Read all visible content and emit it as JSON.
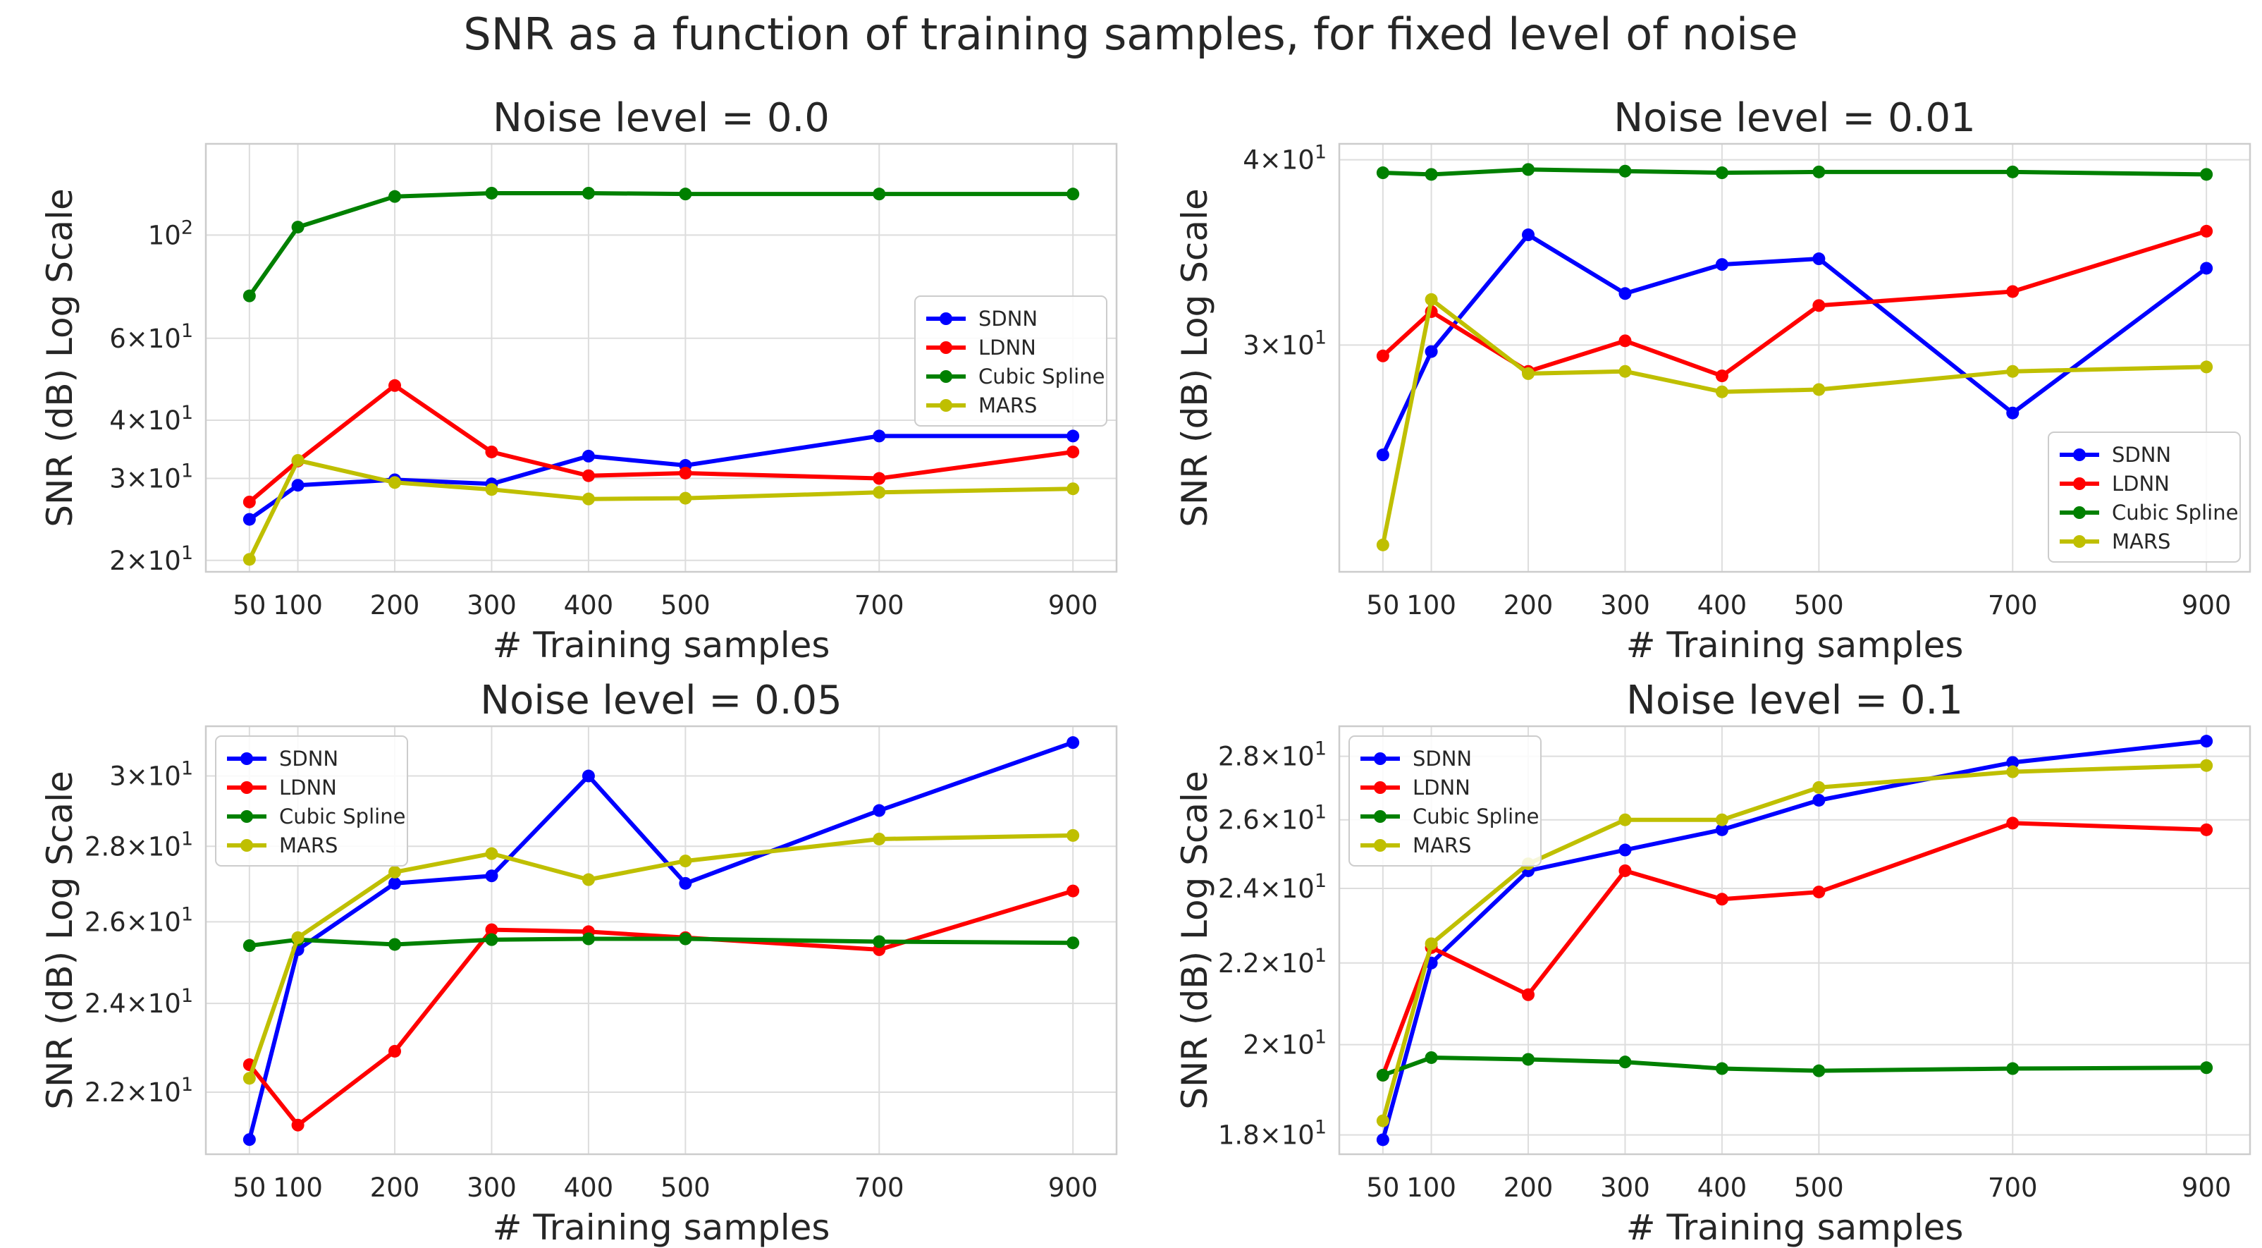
{
  "suptitle": "SNR as a function of training samples, for fixed level of noise",
  "colors": {
    "SDNN": "#0000ff",
    "LDNN": "#ff0000",
    "Cubic Spline": "#008000",
    "MARS": "#bfbf00",
    "grid": "#dddddd",
    "frame": "#cccccc"
  },
  "chart_data": [
    {
      "type": "line",
      "title": "Noise level = 0.0",
      "xlabel": "# Training samples",
      "ylabel": "SNR (dB) Log Scale",
      "yscale": "log",
      "x": [
        50,
        100,
        200,
        300,
        400,
        500,
        700,
        900
      ],
      "xlim": [
        5,
        945
      ],
      "ylim": [
        18.9,
        157
      ],
      "yticks": [
        {
          "value": 20,
          "label": "2×10^1"
        },
        {
          "value": 30,
          "label": "3×10^1"
        },
        {
          "value": 40,
          "label": "4×10^1"
        },
        {
          "value": 60,
          "label": "6×10^1"
        },
        {
          "value": 100,
          "label": "10^2"
        }
      ],
      "legend": "center-right",
      "series": [
        {
          "name": "SDNN",
          "values": [
            24.5,
            29.0,
            29.8,
            29.2,
            33.5,
            32.0,
            37.0,
            37.0
          ]
        },
        {
          "name": "LDNN",
          "values": [
            26.7,
            32.7,
            47.5,
            34.2,
            30.4,
            30.8,
            30.0,
            34.2
          ]
        },
        {
          "name": "Cubic Spline",
          "values": [
            74.0,
            104.0,
            121.0,
            123.0,
            123.0,
            122.5,
            122.5,
            122.5
          ]
        },
        {
          "name": "MARS",
          "values": [
            20.1,
            32.8,
            29.4,
            28.4,
            27.1,
            27.2,
            28.0,
            28.5
          ]
        }
      ]
    },
    {
      "type": "line",
      "title": "Noise level = 0.01",
      "xlabel": "# Training samples",
      "ylabel": "SNR (dB) Log Scale",
      "yscale": "log",
      "x": [
        50,
        100,
        200,
        300,
        400,
        500,
        700,
        900
      ],
      "xlim": [
        5,
        945
      ],
      "ylim": [
        21.1,
        41.0
      ],
      "yticks": [
        {
          "value": 30,
          "label": "3×10^1"
        },
        {
          "value": 40,
          "label": "4×10^1"
        }
      ],
      "legend": "lower-right",
      "series": [
        {
          "name": "SDNN",
          "values": [
            25.3,
            29.7,
            35.6,
            32.5,
            34.0,
            34.3,
            27.0,
            33.8
          ]
        },
        {
          "name": "LDNN",
          "values": [
            29.5,
            31.6,
            28.8,
            30.2,
            28.6,
            31.9,
            32.6,
            35.8
          ]
        },
        {
          "name": "Cubic Spline",
          "values": [
            39.2,
            39.1,
            39.4,
            39.3,
            39.2,
            39.25,
            39.25,
            39.1
          ]
        },
        {
          "name": "MARS",
          "values": [
            22.0,
            32.2,
            28.7,
            28.8,
            27.9,
            28.0,
            28.8,
            29.0
          ]
        }
      ]
    },
    {
      "type": "line",
      "title": "Noise level = 0.05",
      "xlabel": "# Training samples",
      "ylabel": "SNR (dB) Log Scale",
      "yscale": "log",
      "x": [
        50,
        100,
        200,
        300,
        400,
        500,
        700,
        900
      ],
      "xlim": [
        5,
        945
      ],
      "ylim": [
        20.7,
        31.5
      ],
      "yticks": [
        {
          "value": 22,
          "label": "2.2×10^1"
        },
        {
          "value": 24,
          "label": "2.4×10^1"
        },
        {
          "value": 26,
          "label": "2.6×10^1"
        },
        {
          "value": 28,
          "label": "2.8×10^1"
        },
        {
          "value": 30,
          "label": "3×10^1"
        }
      ],
      "legend": "upper-left",
      "series": [
        {
          "name": "SDNN",
          "values": [
            21.0,
            25.3,
            27.0,
            27.2,
            30.0,
            27.0,
            29.0,
            31.0
          ]
        },
        {
          "name": "LDNN",
          "values": [
            22.6,
            21.3,
            22.9,
            25.8,
            25.75,
            25.6,
            25.3,
            26.8
          ]
        },
        {
          "name": "Cubic Spline",
          "values": [
            25.4,
            25.55,
            25.43,
            25.55,
            25.57,
            25.57,
            25.5,
            25.47
          ]
        },
        {
          "name": "MARS",
          "values": [
            22.3,
            25.6,
            27.3,
            27.8,
            27.1,
            27.6,
            28.2,
            28.3
          ]
        }
      ]
    },
    {
      "type": "line",
      "title": "Noise level = 0.1",
      "xlabel": "# Training samples",
      "ylabel": "SNR (dB) Log Scale",
      "yscale": "log",
      "x": [
        50,
        100,
        200,
        300,
        400,
        500,
        700,
        900
      ],
      "xlim": [
        5,
        945
      ],
      "ylim": [
        17.6,
        29.0
      ],
      "yticks": [
        {
          "value": 18,
          "label": "1.8×10^1"
        },
        {
          "value": 20,
          "label": "2×10^1"
        },
        {
          "value": 22,
          "label": "2.2×10^1"
        },
        {
          "value": 24,
          "label": "2.4×10^1"
        },
        {
          "value": 26,
          "label": "2.6×10^1"
        },
        {
          "value": 28,
          "label": "2.8×10^1"
        }
      ],
      "legend": "upper-left",
      "series": [
        {
          "name": "SDNN",
          "values": [
            17.9,
            22.0,
            24.5,
            25.1,
            25.7,
            26.6,
            27.8,
            28.5
          ]
        },
        {
          "name": "LDNN",
          "values": [
            19.3,
            22.4,
            21.2,
            24.5,
            23.7,
            23.9,
            25.9,
            25.7
          ]
        },
        {
          "name": "Cubic Spline",
          "values": [
            19.3,
            19.7,
            19.66,
            19.6,
            19.45,
            19.4,
            19.45,
            19.47
          ]
        },
        {
          "name": "MARS",
          "values": [
            18.3,
            22.5,
            24.7,
            26.0,
            26.0,
            27.0,
            27.5,
            27.7
          ]
        }
      ]
    }
  ]
}
